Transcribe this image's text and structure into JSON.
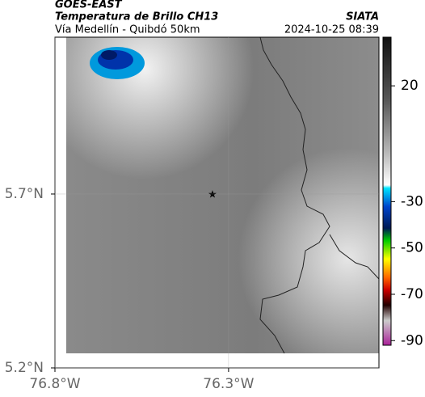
{
  "header": {
    "title": "GOES-EAST",
    "subtitle": "Temperatura de Brillo CH13",
    "source": "SIATA",
    "route": "Vía Medellín - Quibdó 50km",
    "timestamp": "2024-10-25 08:39"
  },
  "map": {
    "xlim": [
      -76.8,
      -75.867
    ],
    "ylim": [
      5.2,
      6.151
    ],
    "xticks": [
      {
        "value": -76.8,
        "label": "76.8°W"
      },
      {
        "value": -76.3,
        "label": "76.3°W"
      }
    ],
    "yticks": [
      {
        "value": 5.7,
        "label": "5.7°N"
      },
      {
        "value": 5.2,
        "label": "5.2°N"
      }
    ],
    "grid": true
  },
  "colorbar": {
    "lim": [
      -92,
      41
    ],
    "ticks": [
      20,
      -30,
      -50,
      -70,
      -90
    ]
  }
}
